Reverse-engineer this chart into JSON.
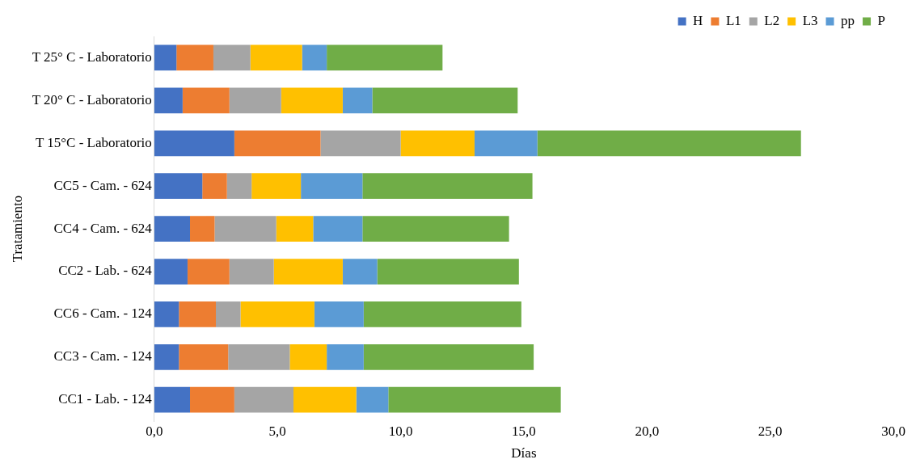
{
  "chart_data": {
    "type": "bar",
    "orientation": "horizontal",
    "stacked": true,
    "xlabel": "Días",
    "ylabel": "Tratamiento",
    "legend": "top right",
    "grid": false,
    "categories": [
      "T 25° C - Laboratorio",
      "T 20° C - Laboratorio",
      "T 15°C - Laboratorio",
      "CC5 - Cam. - 624",
      "CC4 - Cam. - 624",
      "CC2 - Lab. - 624",
      "CC6 - Cam. - 124",
      "CC3 - Cam. - 124",
      "CC1 - Lab. - 124"
    ],
    "xlim": [
      0,
      30
    ],
    "xticks": [
      {
        "value": 0,
        "label": "0,0"
      },
      {
        "value": 5,
        "label": "5,0"
      },
      {
        "value": 10,
        "label": "10,0"
      },
      {
        "value": 15,
        "label": "15,0"
      },
      {
        "value": 20,
        "label": "20,0"
      },
      {
        "value": 25,
        "label": "25,0"
      },
      {
        "value": 30,
        "label": "30,0"
      }
    ],
    "series": [
      {
        "name": "H",
        "color": "#4472c4",
        "values": [
          0.9,
          1.15,
          3.25,
          1.95,
          1.45,
          1.35,
          1.0,
          1.0,
          1.45
        ]
      },
      {
        "name": "L1",
        "color": "#ed7d31",
        "values": [
          1.5,
          1.9,
          3.5,
          1.0,
          1.0,
          1.7,
          1.5,
          2.0,
          1.8
        ]
      },
      {
        "name": "L2",
        "color": "#a5a5a5",
        "values": [
          1.5,
          2.1,
          3.25,
          1.0,
          2.5,
          1.8,
          1.0,
          2.5,
          2.4
        ]
      },
      {
        "name": "L3",
        "color": "#ffc000",
        "values": [
          2.1,
          2.5,
          3.0,
          2.0,
          1.5,
          2.8,
          3.0,
          1.5,
          2.55
        ]
      },
      {
        "name": "pp",
        "color": "#5b9bd5",
        "values": [
          1.0,
          1.2,
          2.55,
          2.5,
          2.0,
          1.4,
          2.0,
          1.5,
          1.3
        ]
      },
      {
        "name": "P",
        "color": "#70ad47",
        "values": [
          4.7,
          5.9,
          10.7,
          6.9,
          5.95,
          5.75,
          6.4,
          6.9,
          7.0
        ]
      }
    ]
  }
}
